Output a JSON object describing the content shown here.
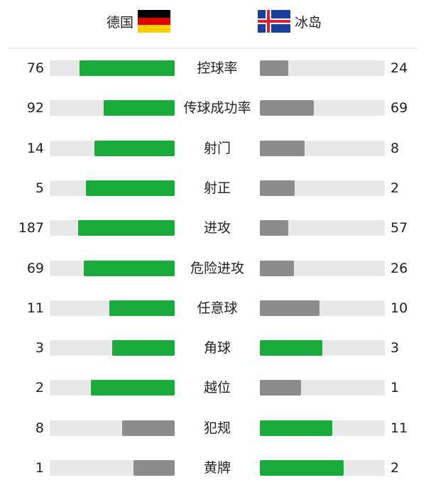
{
  "colors": {
    "leading": "#1aaa3c",
    "trailing": "#8c8c8c",
    "track": "#e8e8e8"
  },
  "home": {
    "name": "德国",
    "flag": "germany-flag"
  },
  "away": {
    "name": "冰岛",
    "flag": "iceland-flag"
  },
  "stats": [
    {
      "label": "控球率",
      "home": "76",
      "away": "24",
      "home_fill": 0.76,
      "away_fill": 0.23,
      "home_color": "leading",
      "away_color": "trailing"
    },
    {
      "label": "传球成功率",
      "home": "92",
      "away": "69",
      "home_fill": 0.57,
      "away_fill": 0.43,
      "home_color": "leading",
      "away_color": "trailing"
    },
    {
      "label": "射门",
      "home": "14",
      "away": "8",
      "home_fill": 0.64,
      "away_fill": 0.36,
      "home_color": "leading",
      "away_color": "trailing"
    },
    {
      "label": "射正",
      "home": "5",
      "away": "2",
      "home_fill": 0.71,
      "away_fill": 0.28,
      "home_color": "leading",
      "away_color": "trailing"
    },
    {
      "label": "进攻",
      "home": "187",
      "away": "57",
      "home_fill": 0.77,
      "away_fill": 0.23,
      "home_color": "leading",
      "away_color": "trailing"
    },
    {
      "label": "危险进攻",
      "home": "69",
      "away": "26",
      "home_fill": 0.73,
      "away_fill": 0.27,
      "home_color": "leading",
      "away_color": "trailing"
    },
    {
      "label": "任意球",
      "home": "11",
      "away": "10",
      "home_fill": 0.52,
      "away_fill": 0.48,
      "home_color": "leading",
      "away_color": "trailing"
    },
    {
      "label": "角球",
      "home": "3",
      "away": "3",
      "home_fill": 0.5,
      "away_fill": 0.5,
      "home_color": "leading",
      "away_color": "leading"
    },
    {
      "label": "越位",
      "home": "2",
      "away": "1",
      "home_fill": 0.67,
      "away_fill": 0.33,
      "home_color": "leading",
      "away_color": "trailing"
    },
    {
      "label": "犯规",
      "home": "8",
      "away": "11",
      "home_fill": 0.42,
      "away_fill": 0.58,
      "home_color": "trailing",
      "away_color": "leading"
    },
    {
      "label": "黄牌",
      "home": "1",
      "away": "2",
      "home_fill": 0.33,
      "away_fill": 0.67,
      "home_color": "trailing",
      "away_color": "leading"
    }
  ]
}
